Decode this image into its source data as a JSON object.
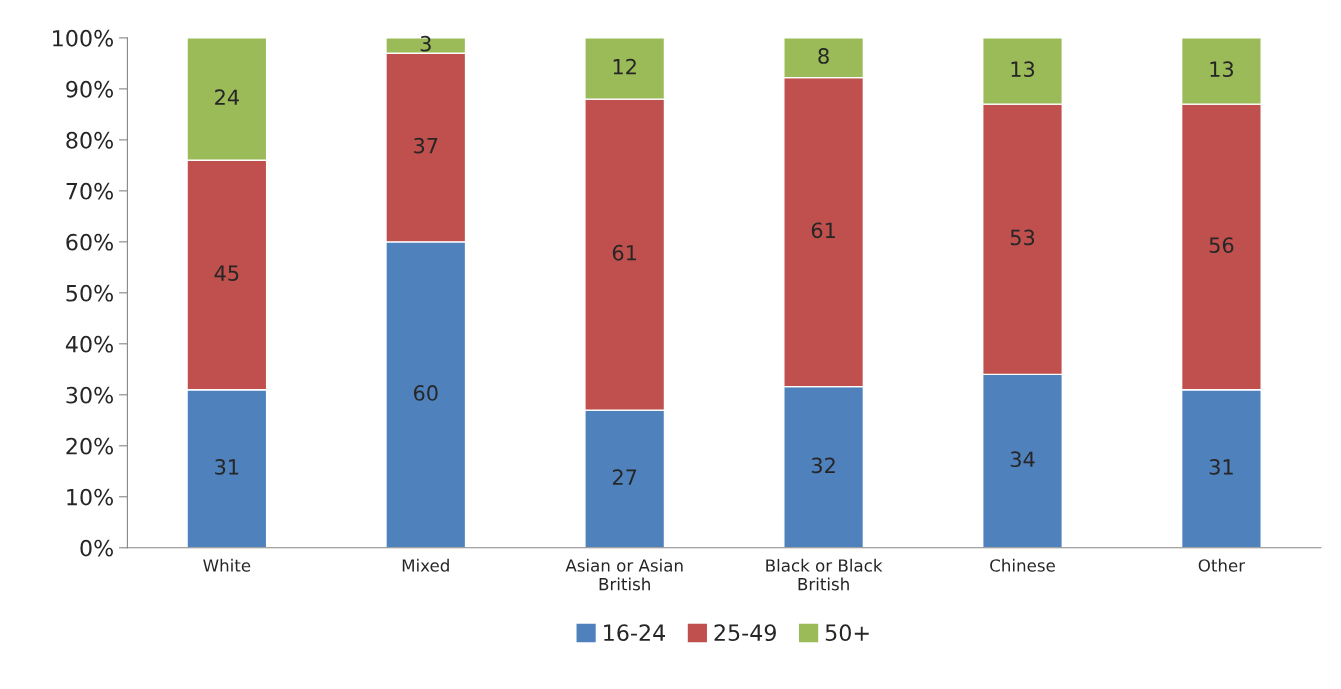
{
  "chart_data": {
    "type": "bar",
    "stacked": true,
    "legend": "bottom",
    "grid": false,
    "categories": [
      "White",
      "Mixed",
      "Asian or Asian\nBritish",
      "Black or Black\nBritish",
      "Chinese",
      "Other"
    ],
    "series": [
      {
        "name": "16-24",
        "color": "#4f81bd",
        "values": [
          31,
          60,
          27,
          31.6,
          34,
          31
        ],
        "value_labels": [
          "31",
          "60",
          "27",
          "32",
          "34",
          "31"
        ]
      },
      {
        "name": "25-49",
        "color": "#c0504d",
        "values": [
          45,
          37,
          61,
          60.6,
          53,
          56
        ],
        "value_labels": [
          "45",
          "37",
          "61",
          "61",
          "53",
          "56"
        ]
      },
      {
        "name": "50+",
        "color": "#9bbb59",
        "values": [
          24,
          3,
          12,
          7.8,
          13,
          13
        ],
        "value_labels": [
          "24",
          "3",
          "12",
          "8",
          "13",
          "13"
        ]
      }
    ],
    "ylim": [
      0,
      100
    ],
    "yticks": [
      {
        "value": 0,
        "label": "0%"
      },
      {
        "value": 10,
        "label": "10%"
      },
      {
        "value": 20,
        "label": "20%"
      },
      {
        "value": 30,
        "label": "30%"
      },
      {
        "value": 40,
        "label": "40%"
      },
      {
        "value": 50,
        "label": "50%"
      },
      {
        "value": 60,
        "label": "60%"
      },
      {
        "value": 70,
        "label": "70%"
      },
      {
        "value": 80,
        "label": "80%"
      },
      {
        "value": 90,
        "label": "90%"
      },
      {
        "value": 100,
        "label": "100%"
      }
    ]
  }
}
